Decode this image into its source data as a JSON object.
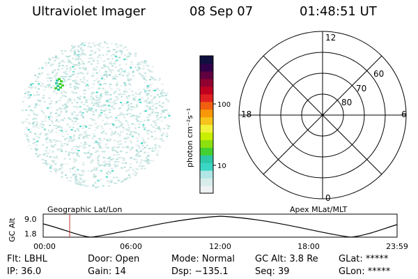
{
  "header": {
    "instrument": "Ultraviolet Imager",
    "date": "08 Sep 07",
    "time": "01:48:51 UT"
  },
  "colorbar": {
    "unit_label": "photon cm⁻²s⁻¹",
    "ticks": [
      {
        "label": "100",
        "value": 100
      },
      {
        "label": "10",
        "value": 10
      }
    ],
    "colors": [
      "#eef2f2",
      "#d8ecec",
      "#b0e6e6",
      "#3cd6c6",
      "#2ec8a8",
      "#44d030",
      "#8ce010",
      "#c8ee00",
      "#f2f23c",
      "#f6c41c",
      "#f89808",
      "#f06010",
      "#e02020",
      "#c00020",
      "#900030",
      "#600040",
      "#300048",
      "#101040"
    ]
  },
  "polar_grid": {
    "mlt_labels": {
      "top": "12",
      "left": "18",
      "right": "6",
      "bottom": "0"
    },
    "lat_labels": [
      "60",
      "70",
      "80"
    ]
  },
  "timeline": {
    "ylabel": "GC Alt",
    "y_ticks": [
      "9.0",
      "1.8"
    ],
    "left_label": "Geographic Lat/Lon",
    "right_label": "Apex MLat/MLT",
    "x_ticks": [
      "00:00",
      "06:00",
      "12:00",
      "18:00",
      "23:59"
    ]
  },
  "status": {
    "flt": "Flt: LBHL",
    "door": "Door: Open",
    "mode": "Mode: Normal",
    "gc_alt": "GC Alt: 3.8 Re",
    "glat": "GLat: *****",
    "ip": "IP: 36.0",
    "gain": "Gain: 14",
    "dsp": "Dsp: −135.1",
    "seq": "Seq: 39",
    "glon": "GLon: *****"
  }
}
